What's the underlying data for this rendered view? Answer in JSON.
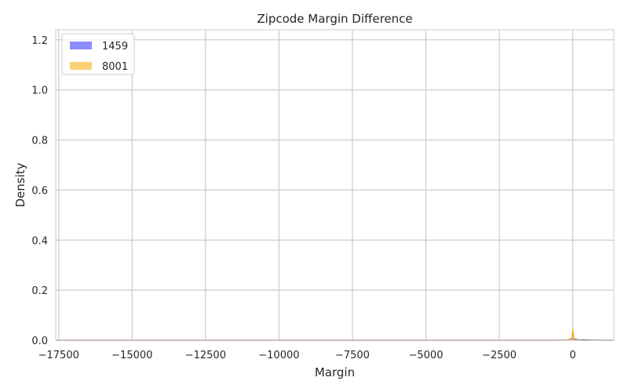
{
  "chart_data": {
    "type": "area",
    "title": "Zipcode Margin Difference",
    "xlabel": "Margin",
    "ylabel": "Density",
    "xlim": [
      -17600,
      1400
    ],
    "ylim": [
      0,
      1.24
    ],
    "xticks": [
      -17500,
      -15000,
      -12500,
      -10000,
      -7500,
      -5000,
      -2500,
      0
    ],
    "xtick_labels": [
      "−17500",
      "−15000",
      "−12500",
      "−10000",
      "−7500",
      "−5000",
      "−2500",
      "0"
    ],
    "yticks": [
      0.0,
      0.2,
      0.4,
      0.6,
      0.8,
      1.0,
      1.2
    ],
    "ytick_labels": [
      "0.0",
      "0.2",
      "0.4",
      "0.6",
      "0.8",
      "1.0",
      "1.2"
    ],
    "grid": true,
    "legend_position": "top-left",
    "series": [
      {
        "name": "1459",
        "color": "#7f7ffb",
        "line_color": "#0000cc",
        "x": [
          -17600,
          -600,
          -200,
          -50,
          0,
          50,
          200,
          800,
          1400
        ],
        "y": [
          0,
          0,
          0.001,
          0.004,
          0.006,
          0.004,
          0.002,
          0.0005,
          0
        ]
      },
      {
        "name": "8001",
        "color": "#ffcc66",
        "line_color": "#ff9900",
        "x": [
          -17600,
          -300,
          -40,
          -10,
          0,
          10,
          40,
          300,
          1400
        ],
        "y": [
          0,
          0,
          0.002,
          0.03,
          0.045,
          0.03,
          0.002,
          0,
          0
        ]
      }
    ]
  }
}
